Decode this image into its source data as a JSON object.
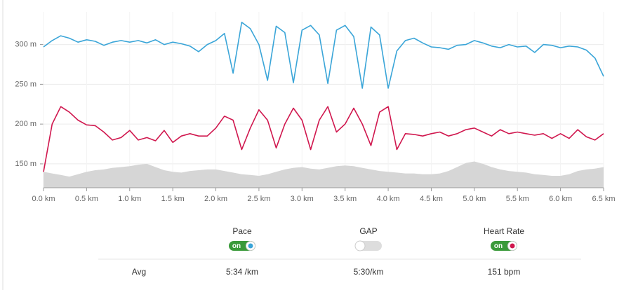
{
  "chart_data": {
    "type": "line",
    "x": [
      0,
      0.1,
      0.2,
      0.3,
      0.4,
      0.5,
      0.6,
      0.7,
      0.8,
      0.9,
      1,
      1.1,
      1.2,
      1.3,
      1.4,
      1.5,
      1.6,
      1.7,
      1.8,
      1.9,
      2,
      2.1,
      2.2,
      2.3,
      2.4,
      2.5,
      2.6,
      2.7,
      2.8,
      2.9,
      3,
      3.1,
      3.2,
      3.3,
      3.4,
      3.5,
      3.6,
      3.7,
      3.8,
      3.9,
      4,
      4.1,
      4.2,
      4.3,
      4.4,
      4.5,
      4.6,
      4.7,
      4.8,
      4.9,
      5,
      5.1,
      5.2,
      5.3,
      5.4,
      5.5,
      5.6,
      5.7,
      5.8,
      5.9,
      6,
      6.1,
      6.2,
      6.3,
      6.4,
      6.5
    ],
    "series": [
      {
        "color": "#d6d6d6",
        "fill": true,
        "values": [
          140,
          138,
          136,
          134,
          137,
          140,
          142,
          143,
          145,
          146,
          147,
          149,
          150,
          146,
          142,
          140,
          139,
          141,
          142,
          143,
          143,
          141,
          139,
          137,
          136,
          135,
          137,
          140,
          143,
          145,
          146,
          144,
          143,
          145,
          147,
          148,
          147,
          145,
          143,
          141,
          140,
          139,
          138,
          138,
          137,
          137,
          138,
          141,
          146,
          151,
          153,
          150,
          146,
          143,
          141,
          140,
          139,
          137,
          136,
          135,
          135,
          137,
          141,
          143,
          144,
          146
        ]
      },
      {
        "name": "Pace",
        "color": "#3aa5d8",
        "values": [
          297,
          305,
          311,
          308,
          303,
          306,
          304,
          299,
          303,
          305,
          303,
          305,
          302,
          306,
          300,
          303,
          301,
          298,
          291,
          300,
          305,
          314,
          264,
          328,
          320,
          300,
          255,
          323,
          315,
          252,
          318,
          324,
          312,
          251,
          318,
          324,
          310,
          245,
          322,
          312,
          245,
          292,
          305,
          308,
          302,
          297,
          296,
          294,
          299,
          300,
          305,
          302,
          298,
          296,
          300,
          297,
          298,
          290,
          300,
          299,
          296,
          298,
          297,
          293,
          283,
          260
        ]
      },
      {
        "name": "Heart Rate",
        "color": "#d0174e",
        "values": [
          140,
          200,
          222,
          215,
          205,
          199,
          198,
          190,
          180,
          183,
          192,
          180,
          183,
          179,
          192,
          177,
          185,
          188,
          185,
          185,
          195,
          210,
          205,
          168,
          195,
          218,
          205,
          170,
          200,
          220,
          205,
          168,
          205,
          222,
          190,
          200,
          220,
          200,
          173,
          215,
          222,
          168,
          188,
          187,
          185,
          188,
          190,
          185,
          188,
          193,
          195,
          190,
          185,
          193,
          188,
          190,
          188,
          186,
          188,
          182,
          188,
          182,
          193,
          184,
          180,
          188
        ]
      }
    ],
    "xlim": [
      0,
      6.5
    ],
    "xticks": [
      {
        "value": 0,
        "label": "0.0 km"
      },
      {
        "value": 0.5,
        "label": "0.5 km"
      },
      {
        "value": 1,
        "label": "1.0 km"
      },
      {
        "value": 1.5,
        "label": "1.5 km"
      },
      {
        "value": 2,
        "label": "2.0 km"
      },
      {
        "value": 2.5,
        "label": "2.5 km"
      },
      {
        "value": 3,
        "label": "3.0 km"
      },
      {
        "value": 3.5,
        "label": "3.5 km"
      },
      {
        "value": 4,
        "label": "4.0 km"
      },
      {
        "value": 4.5,
        "label": "4.5 km"
      },
      {
        "value": 5,
        "label": "5.0 km"
      },
      {
        "value": 5.5,
        "label": "5.5 km"
      },
      {
        "value": 6,
        "label": "6.0 km"
      },
      {
        "value": 6.5,
        "label": "6.5 km"
      }
    ],
    "ylim": [
      120,
      341
    ],
    "yticks": [
      {
        "value": 150,
        "label": "150 m"
      },
      {
        "value": 200,
        "label": "200 m"
      },
      {
        "value": 250,
        "label": "250 m"
      },
      {
        "value": 300,
        "label": "300 m"
      }
    ],
    "grid": true
  },
  "controls": [
    {
      "label": "Pace",
      "on": true,
      "state_label": "on",
      "color": "#3aa5d8"
    },
    {
      "label": "GAP",
      "on": false
    },
    {
      "label": "Heart Rate",
      "on": true,
      "state_label": "on",
      "color": "#d0174e"
    }
  ],
  "summary": {
    "label": "Avg",
    "values": [
      "5:34 /km",
      "5:30/km",
      "151 bpm"
    ]
  }
}
